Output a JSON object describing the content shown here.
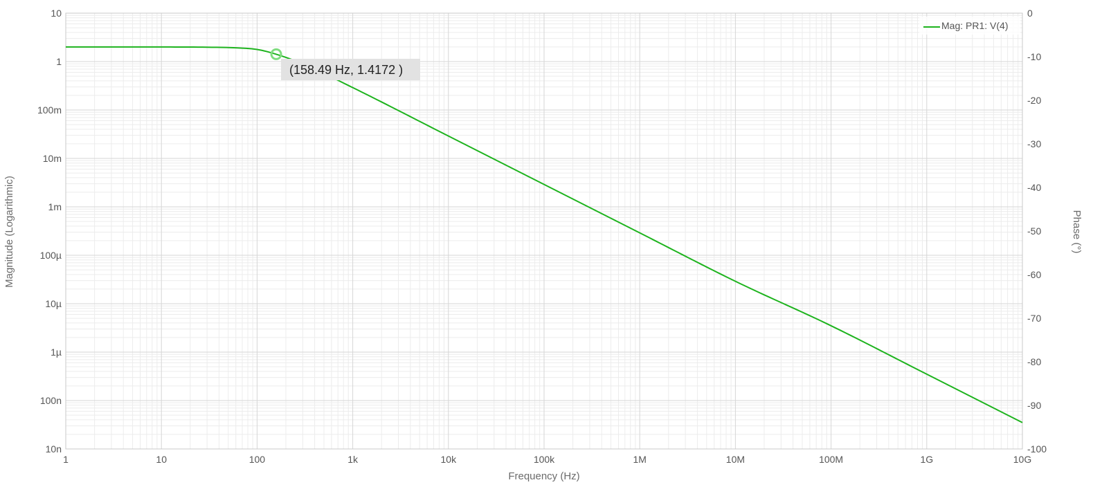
{
  "chart_data": {
    "type": "line",
    "xlabel": "Frequency (Hz)",
    "ylabel": "Magnitude (Logarithmic)",
    "y2label": "Phase (°)",
    "x_scale": "log",
    "y_scale": "log",
    "xlim": [
      1,
      10000000000
    ],
    "ylim": [
      1e-08,
      10
    ],
    "y2lim": [
      -100,
      0
    ],
    "grid": true,
    "legend_position": "top-right",
    "x_ticks": [
      {
        "value": 1,
        "label": "1"
      },
      {
        "value": 10,
        "label": "10"
      },
      {
        "value": 100,
        "label": "100"
      },
      {
        "value": 1000,
        "label": "1k"
      },
      {
        "value": 10000,
        "label": "10k"
      },
      {
        "value": 100000,
        "label": "100k"
      },
      {
        "value": 1000000,
        "label": "1M"
      },
      {
        "value": 10000000,
        "label": "10M"
      },
      {
        "value": 100000000,
        "label": "100M"
      },
      {
        "value": 1000000000,
        "label": "1G"
      },
      {
        "value": 10000000000,
        "label": "10G"
      }
    ],
    "y_ticks": [
      {
        "value": 10,
        "label": "10"
      },
      {
        "value": 1,
        "label": "1"
      },
      {
        "value": 0.1,
        "label": "100m"
      },
      {
        "value": 0.01,
        "label": "10m"
      },
      {
        "value": 0.001,
        "label": "1m"
      },
      {
        "value": 0.0001,
        "label": "100µ"
      },
      {
        "value": 1e-05,
        "label": "10µ"
      },
      {
        "value": 1e-06,
        "label": "1µ"
      },
      {
        "value": 1e-07,
        "label": "100n"
      },
      {
        "value": 1e-08,
        "label": "10n"
      }
    ],
    "y2_ticks": [
      {
        "value": 0,
        "label": "0"
      },
      {
        "value": -10,
        "label": "-10"
      },
      {
        "value": -20,
        "label": "-20"
      },
      {
        "value": -30,
        "label": "-30"
      },
      {
        "value": -40,
        "label": "-40"
      },
      {
        "value": -50,
        "label": "-50"
      },
      {
        "value": -60,
        "label": "-60"
      },
      {
        "value": -70,
        "label": "-70"
      },
      {
        "value": -80,
        "label": "-80"
      },
      {
        "value": -90,
        "label": "-90"
      },
      {
        "value": -100,
        "label": "-100"
      }
    ],
    "series": [
      {
        "name": "Mag: PR1: V(4)",
        "color": "#1db31d",
        "x": [
          1,
          10,
          30,
          60,
          100,
          158.49,
          300,
          1000,
          10000,
          100000,
          1000000,
          10000000,
          100000000,
          1000000000,
          10000000000
        ],
        "y": [
          2.0,
          2.0,
          1.98,
          1.92,
          1.78,
          1.4172,
          0.9,
          0.29,
          0.029,
          0.0029,
          0.00029,
          2.9e-05,
          3.5e-06,
          3.5e-07,
          3.5e-08
        ]
      }
    ],
    "cursor": {
      "x": 158.49,
      "y": 1.4172,
      "label": "(158.49 Hz, 1.4172 )"
    }
  }
}
